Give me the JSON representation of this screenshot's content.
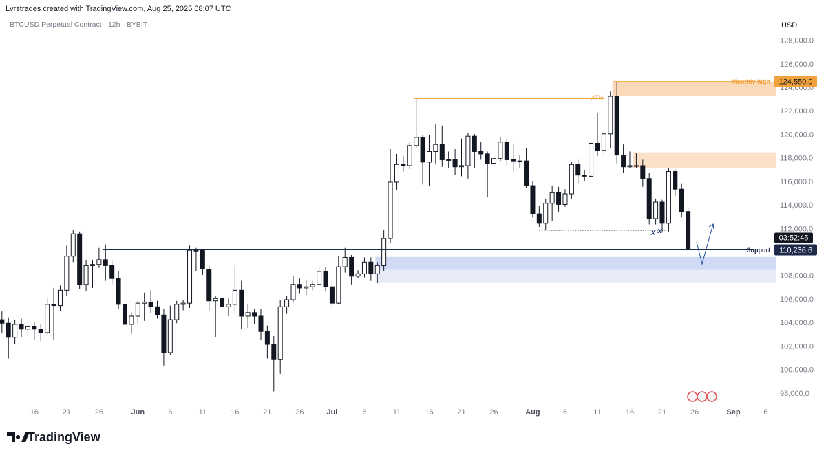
{
  "header": {
    "credit": "Lvrstrades created with TradingView.com, Aug 25, 2025 08:07 UTC",
    "symbol": "BTCUSD Perpetual Contract · 12h · BYBIT",
    "currency": "USD",
    "brand": "TradingView"
  },
  "chart_data": {
    "type": "candlestick",
    "open": [
      104300,
      104000,
      102800,
      103900,
      103500,
      103700,
      103500,
      103200,
      105600,
      105500,
      106800,
      109700,
      111600,
      107300,
      108900,
      109000,
      109400,
      108900,
      107800,
      105600,
      103900,
      104600,
      105700,
      105800,
      105400,
      104700,
      101500,
      104300,
      105600,
      105700,
      110200,
      110200,
      108600,
      105900,
      106100,
      105400,
      105600,
      106800,
      104600,
      104900,
      104600,
      103300,
      102200,
      100900,
      105400,
      106000,
      107300,
      107000,
      107100,
      107300,
      108400,
      107100,
      105700,
      108800,
      109600,
      108000,
      108200,
      109200,
      108200,
      108900,
      111200,
      116000,
      117500,
      117400,
      119100,
      119800,
      117700,
      118600,
      119200,
      117900,
      117900,
      117300,
      117400,
      119900,
      118600,
      118400,
      117600,
      118000,
      119400,
      117900,
      117800,
      117800,
      115700,
      113300,
      112500,
      114200,
      115100,
      114100,
      115000,
      117500,
      116600,
      116500,
      119300,
      118700,
      120100,
      123300,
      118300,
      117300,
      117400,
      117400,
      116300,
      112900,
      114300,
      112500,
      116900,
      115400,
      113500
    ],
    "high": [
      105000,
      104500,
      104300,
      104400,
      104200,
      104100,
      103900,
      106200,
      107000,
      107200,
      110600,
      111900,
      111800,
      109400,
      109400,
      110400,
      110700,
      109300,
      108400,
      106400,
      104900,
      105900,
      106600,
      106800,
      105900,
      105200,
      105500,
      105900,
      106000,
      110600,
      110400,
      110300,
      108900,
      106300,
      106300,
      106100,
      108900,
      107600,
      105600,
      105200,
      105200,
      103800,
      102900,
      106000,
      106300,
      108000,
      107800,
      107700,
      107600,
      108800,
      108800,
      107600,
      109700,
      110400,
      109800,
      108500,
      109600,
      109600,
      109200,
      111900,
      118800,
      118400,
      118200,
      119400,
      123100,
      120000,
      120000,
      120900,
      120800,
      118600,
      118800,
      119700,
      120200,
      120100,
      119400,
      118600,
      118400,
      119800,
      119700,
      119300,
      118300,
      118900,
      116100,
      114000,
      114600,
      115700,
      115600,
      115400,
      117700,
      117900,
      117000,
      119500,
      121900,
      120300,
      123700,
      124500,
      119200,
      118600,
      118500,
      117900,
      116800,
      114600,
      114500,
      117200,
      117100,
      115900,
      113800
    ],
    "low": [
      103200,
      101000,
      102200,
      102800,
      102900,
      102600,
      102500,
      103000,
      102600,
      105000,
      106300,
      109200,
      106900,
      106700,
      107000,
      108700,
      107600,
      107300,
      105200,
      103700,
      103100,
      103900,
      104200,
      104900,
      104400,
      100400,
      101300,
      104000,
      105100,
      105300,
      108400,
      108100,
      105100,
      102800,
      104900,
      104600,
      104900,
      103500,
      103600,
      103900,
      102600,
      101000,
      98200,
      99700,
      104800,
      105800,
      106500,
      106400,
      106800,
      107200,
      106700,
      105200,
      105600,
      108300,
      107300,
      107800,
      107900,
      107600,
      107400,
      108400,
      110800,
      115300,
      116900,
      117100,
      118900,
      115800,
      115700,
      117500,
      117300,
      117200,
      116600,
      116500,
      116300,
      117200,
      117900,
      114700,
      117300,
      117800,
      117400,
      116900,
      117200,
      115500,
      113000,
      112200,
      111900,
      112700,
      113500,
      113900,
      114600,
      115900,
      116100,
      116400,
      118200,
      118300,
      118900,
      117600,
      116800,
      117200,
      117200,
      115600,
      112400,
      112400,
      111700,
      111800,
      114800,
      113000,
      110200
    ],
    "close": [
      104000,
      102800,
      103900,
      103500,
      103700,
      103500,
      103200,
      105600,
      105500,
      106800,
      109700,
      111600,
      107300,
      108900,
      109000,
      109400,
      108900,
      107800,
      105600,
      103900,
      104600,
      105700,
      105800,
      105400,
      104700,
      101500,
      104300,
      105600,
      105700,
      110200,
      110200,
      108600,
      105900,
      106100,
      105400,
      105600,
      106800,
      104600,
      104900,
      104600,
      103300,
      102200,
      100900,
      105400,
      106000,
      107300,
      107000,
      107100,
      107300,
      108400,
      107100,
      105700,
      108800,
      109600,
      108000,
      108200,
      109200,
      108200,
      108900,
      111200,
      116000,
      117500,
      117400,
      119100,
      119800,
      117700,
      118600,
      119200,
      117900,
      117900,
      117300,
      117400,
      119900,
      118600,
      118400,
      117600,
      118000,
      119400,
      117900,
      117800,
      117800,
      115700,
      113300,
      112500,
      114200,
      115100,
      114100,
      115000,
      117500,
      116600,
      116500,
      119300,
      118700,
      120100,
      123300,
      118300,
      117300,
      117400,
      117400,
      116300,
      112900,
      114300,
      112500,
      116900,
      115400,
      113500,
      110236.6
    ],
    "up_color": "#ffffff",
    "down_color": "#131722",
    "xlim": [
      -0.3,
      118.8
    ],
    "xticks": [
      {
        "value": 5,
        "label": "16"
      },
      {
        "value": 10,
        "label": "21"
      },
      {
        "value": 15,
        "label": "26"
      },
      {
        "value": 21,
        "label": "Jun"
      },
      {
        "value": 26,
        "label": "6"
      },
      {
        "value": 31,
        "label": "11"
      },
      {
        "value": 36,
        "label": "16"
      },
      {
        "value": 41,
        "label": "21"
      },
      {
        "value": 46,
        "label": "26"
      },
      {
        "value": 51,
        "label": "Jul"
      },
      {
        "value": 56,
        "label": "6"
      },
      {
        "value": 61,
        "label": "11"
      },
      {
        "value": 66,
        "label": "16"
      },
      {
        "value": 71,
        "label": "21"
      },
      {
        "value": 76,
        "label": "26"
      },
      {
        "value": 82,
        "label": "Aug"
      },
      {
        "value": 87,
        "label": "6"
      },
      {
        "value": 92,
        "label": "11"
      },
      {
        "value": 97,
        "label": "16"
      },
      {
        "value": 102,
        "label": "21"
      },
      {
        "value": 107,
        "label": "26"
      },
      {
        "value": 113,
        "label": "Sep"
      },
      {
        "value": 118,
        "label": "6"
      }
    ],
    "ylim": [
      97000,
      130200
    ],
    "yticks": [
      {
        "value": 98000,
        "label": "98,000.0"
      },
      {
        "value": 100000,
        "label": "100,000.0"
      },
      {
        "value": 102000,
        "label": "102,000.0"
      },
      {
        "value": 104000,
        "label": "104,000.0"
      },
      {
        "value": 106000,
        "label": "106,000.0"
      },
      {
        "value": 108000,
        "label": "108,000.0"
      },
      {
        "value": 110000,
        "label": "110,000.0"
      },
      {
        "value": 112000,
        "label": "112,000.0"
      },
      {
        "value": 114000,
        "label": "114,000.0"
      },
      {
        "value": 116000,
        "label": "116,000.0"
      },
      {
        "value": 118000,
        "label": "118,000.0"
      },
      {
        "value": 120000,
        "label": "120,000.0"
      },
      {
        "value": 122000,
        "label": "122,000.0"
      },
      {
        "value": 124000,
        "label": "124,000.0"
      },
      {
        "value": 126000,
        "label": "126,000.0"
      },
      {
        "value": 128000,
        "label": "128,000.0"
      }
    ],
    "zones": [
      {
        "low": 108530,
        "high": 109640,
        "start": 57.7,
        "color": "#c9d3f2"
      },
      {
        "low": 107420,
        "high": 108530,
        "start": 57.7,
        "color": "#e3e8f7"
      },
      {
        "low": 123320,
        "high": 124550,
        "start": 94.3,
        "color": "#f9d2ad"
      },
      {
        "low": 117180,
        "high": 118530,
        "start": 97.5,
        "color": "#fadcc0"
      }
    ],
    "levels": [
      {
        "label": "ATH",
        "value": 123100,
        "start": 63.6,
        "end": 93.1,
        "color": "#f2a23c"
      },
      {
        "label": "Monthly high",
        "value": 124550,
        "start": 94.5,
        "end": 117.2,
        "color": "#f2a23c",
        "price_label": "124,550.0"
      },
      {
        "label": "Support",
        "value": 110236.6,
        "start": 15.6,
        "end": 116.1,
        "color": "#1e2a4a",
        "price_label": "110,236.6"
      }
    ],
    "dotted_level": {
      "value": 111900,
      "start": 83,
      "end": 102.5
    },
    "marks": [
      {
        "label": "x",
        "index": 100.6,
        "value": 111700
      },
      {
        "label": "x",
        "index": 101.6,
        "value": 111850
      }
    ],
    "countdown": "03:52:45"
  }
}
